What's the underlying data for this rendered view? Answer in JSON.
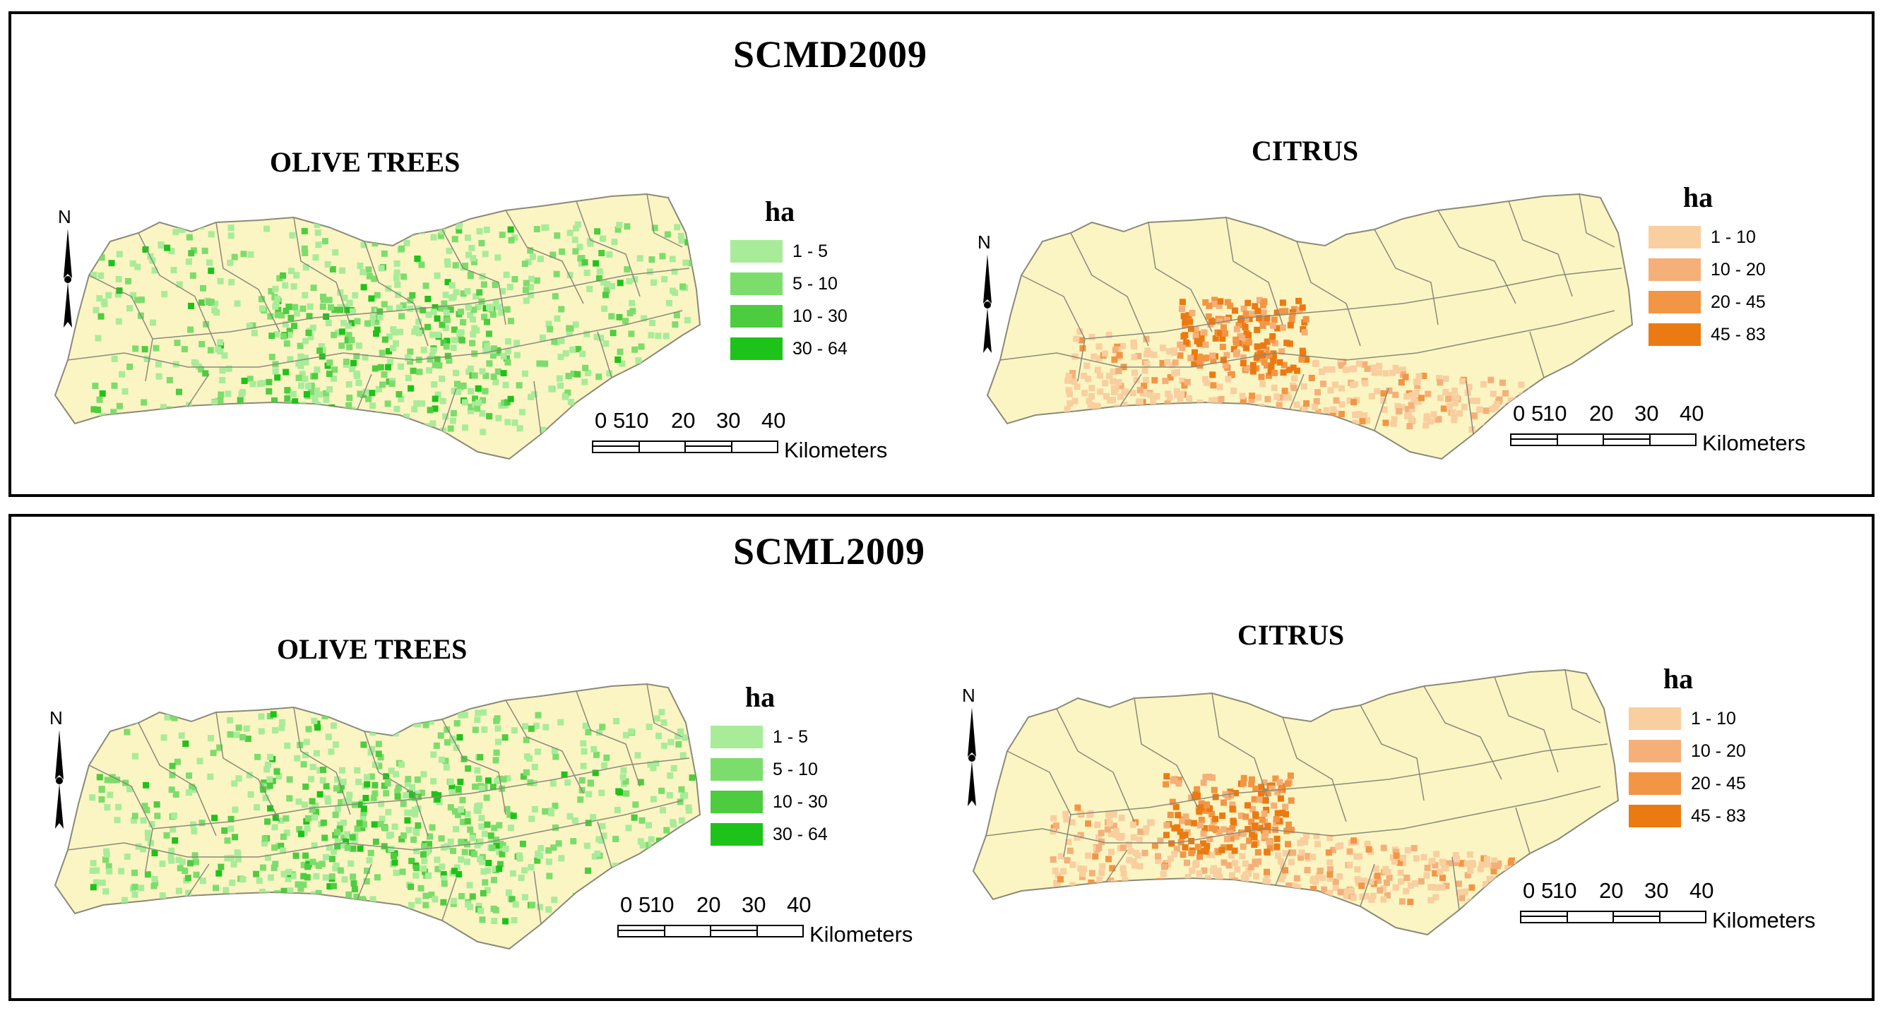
{
  "panels": [
    {
      "title": "SCMD2009",
      "olive": {
        "title": "OLIVE TREES",
        "legend": {
          "unit": "ha",
          "classes": [
            "1 - 5",
            "5 - 10",
            "10 - 30",
            "30 - 64"
          ],
          "colors": [
            "#a8ec9a",
            "#7ddd6c",
            "#4ccc3e",
            "#1ec31a"
          ]
        },
        "north": "N",
        "scale": {
          "ticks": [
            "0",
            "5",
            "10",
            "20",
            "30",
            "40"
          ],
          "unit": "Kilometers"
        }
      },
      "citrus": {
        "title": "CITRUS",
        "legend": {
          "unit": "ha",
          "classes": [
            "1 - 10",
            "10 - 20",
            "20 - 45",
            "45 - 83"
          ],
          "colors": [
            "#f9cf9f",
            "#f5b07a",
            "#f29645",
            "#ec7a13"
          ]
        },
        "north": "N",
        "scale": {
          "ticks": [
            "0",
            "5",
            "10",
            "20",
            "30",
            "40"
          ],
          "unit": "Kilometers"
        }
      }
    },
    {
      "title": "SCML2009",
      "olive": {
        "title": "OLIVE TREES",
        "legend": {
          "unit": "ha",
          "classes": [
            "1 - 5",
            "5 - 10",
            "10 - 30",
            "30 - 64"
          ],
          "colors": [
            "#a8ec9a",
            "#7ddd6c",
            "#4ccc3e",
            "#1ec31a"
          ]
        },
        "north": "N",
        "scale": {
          "ticks": [
            "0",
            "5",
            "10",
            "20",
            "30",
            "40"
          ],
          "unit": "Kilometers"
        }
      },
      "citrus": {
        "title": "CITRUS",
        "legend": {
          "unit": "ha",
          "classes": [
            "1 - 10",
            "10 - 20",
            "20 - 45",
            "45 - 83"
          ],
          "colors": [
            "#f9cf9f",
            "#f5b07a",
            "#f29645",
            "#ec7a13"
          ]
        },
        "north": "N",
        "scale": {
          "ticks": [
            "0",
            "5",
            "10",
            "20",
            "30",
            "40"
          ],
          "unit": "Kilometers"
        }
      }
    }
  ],
  "colors": {
    "land": "#fbf5c4",
    "border": "#8a8a7a"
  }
}
